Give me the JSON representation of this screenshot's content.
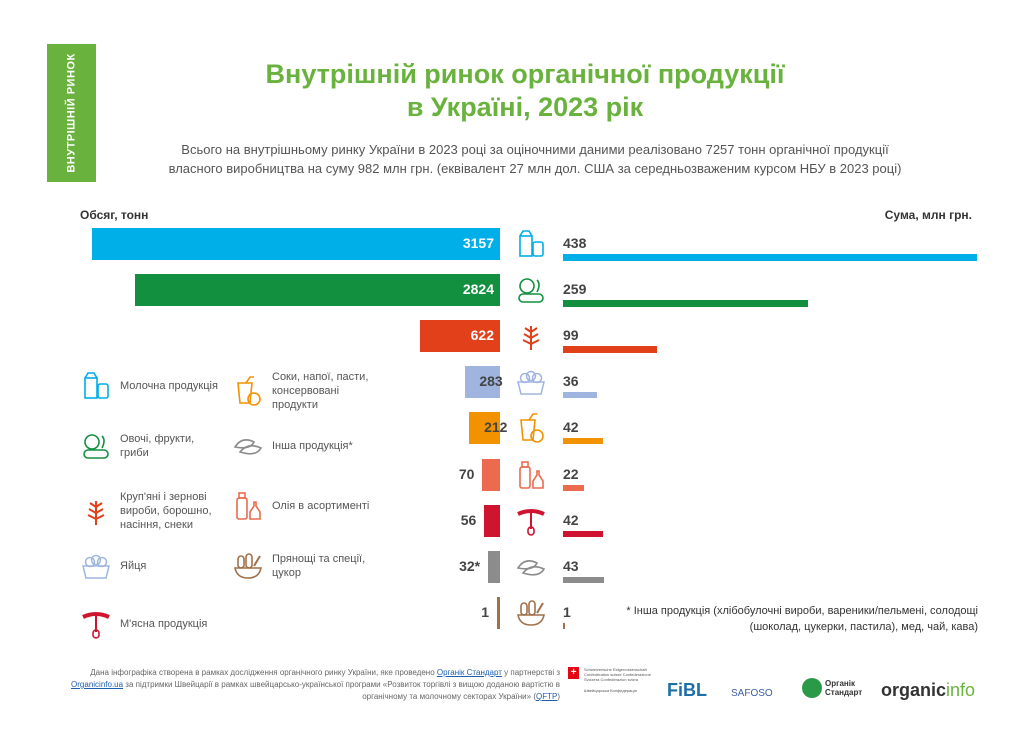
{
  "side_label": "ВНУТРІШНІЙ РИНОК",
  "title_line1": "Внутрішній ринок органічної продукції",
  "title_line2": "в Україні, 2023 рік",
  "subtitle_line1": "Всього на внутрішньому ринку України в 2023 році за оціночними даними реалізовано 7257 тонн органічної продукції",
  "subtitle_line2": "власного виробництва на суму 982 млн грн. (еквівалент 27 млн дол. США за середньозваженим курсом НБУ в 2023 році)",
  "chart_data": {
    "type": "bar",
    "left_axis_label": "Обсяг, тонн",
    "right_axis_label": "Сума, млн грн.",
    "categories": [
      "Молочна продукція",
      "Овочі, фрукти, гриби",
      "Круп'яні і зернові вироби, борошно, насіння, снеки",
      "Яйця",
      "Соки, напої, пасти, консервовані продукти",
      "Олія в асортименті",
      "М'ясна продукція",
      "Інша продукція*",
      "Прянощі та спеції, цукор"
    ],
    "icons": [
      "milk-icon",
      "vegetables-icon",
      "grain-icon",
      "eggs-icon",
      "juice-icon",
      "oil-icon",
      "sausage-icon",
      "dumplings-icon",
      "spices-icon"
    ],
    "colors": [
      "#00aee8",
      "#13903f",
      "#e2401b",
      "#9fb5df",
      "#f39200",
      "#ec6a4f",
      "#cf1430",
      "#8c8c8c",
      "#a0714a"
    ],
    "series": [
      {
        "name": "Обсяг, тонн",
        "values": [
          3157,
          2824,
          622,
          283,
          212,
          70,
          56,
          32,
          1
        ],
        "labels": [
          "3157",
          "2824",
          "622",
          "283",
          "212",
          "70",
          "56",
          "32*",
          "1"
        ]
      },
      {
        "name": "Сума, млн грн.",
        "values": [
          438,
          259,
          99,
          36,
          42,
          22,
          42,
          43,
          1
        ],
        "labels": [
          "438",
          "259",
          "99",
          "36",
          "42",
          "22",
          "42",
          "43",
          "1"
        ]
      }
    ]
  },
  "legend": [
    {
      "label": "Молочна продукція",
      "icon": "milk-icon"
    },
    {
      "label": "Овочі, фрукти, гриби",
      "icon": "vegetables-icon"
    },
    {
      "label": "Круп'яні і зернові вироби, борошно, насіння, снеки",
      "icon": "grain-icon"
    },
    {
      "label": "Яйця",
      "icon": "eggs-icon"
    },
    {
      "label": "М'ясна продукція",
      "icon": "sausage-icon"
    },
    {
      "label": "Соки, напої, пасти, консервовані продукти",
      "icon": "juice-icon"
    },
    {
      "label": "Інша продукція*",
      "icon": "dumplings-icon"
    },
    {
      "label": "Олія в асортименті",
      "icon": "oil-icon"
    },
    {
      "label": "Прянощі та спеції, цукор",
      "icon": "spices-icon"
    }
  ],
  "note_line1": "* Інша продукція (хлібобулочні вироби, вареники/пельмені, солодощі",
  "note_line2": "(шоколад, цукерки, пастила), мед, чай, кава)",
  "credit": {
    "t1": "Дана інфографіка створена в рамках дослідження органічного ринку України, яке проведено ",
    "l1": "Органік Стандарт",
    "t2": " у партнерстві з ",
    "l2": "Organicinfo.ua",
    "t3": " за підтримки Швейцарії в рамках швейцарсько-української програми «Розвиток торгівлі з вищою доданою вартістю в органічному та молочному секторах України» (",
    "l3": "QFTP",
    "t4": ")"
  },
  "logos": {
    "swiss": "Schweizerische Eidgenossenschaft Confédération suisse Confederazione Svizzera Confederaziun svizra",
    "swiss_ua": "Швейцарська Конфедерація",
    "fibl": "FiBL",
    "safoso": "SAFOSO",
    "os": "Органік Стандарт",
    "oi1": "organic",
    "oi2": "info"
  }
}
